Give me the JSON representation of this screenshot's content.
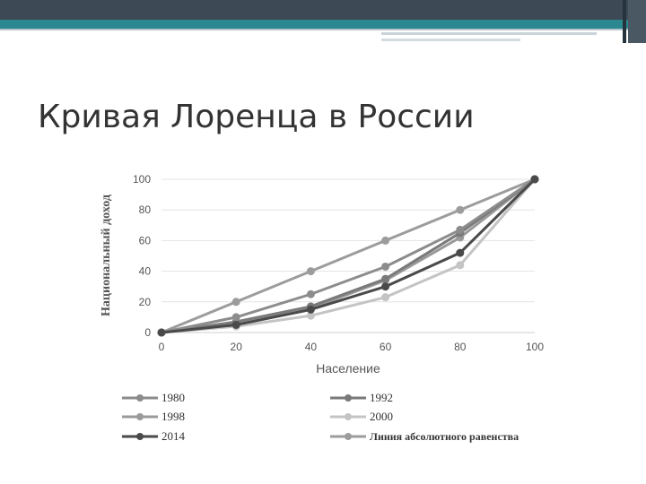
{
  "slide": {
    "title": "Кривая Лоренца в России"
  },
  "colors": {
    "header_dark": "#3d4a55",
    "header_teal": "#2b8790",
    "title_text": "#333333"
  },
  "chart_data": {
    "type": "line",
    "title": "",
    "xlabel": "Население",
    "ylabel": "Национальный доход",
    "x": [
      0,
      20,
      40,
      60,
      80,
      100
    ],
    "xlim": [
      0,
      100
    ],
    "ylim": [
      0,
      100
    ],
    "xticks": [
      "0",
      "20",
      "40",
      "60",
      "80",
      "100"
    ],
    "yticks": [
      "0",
      "20",
      "40",
      "60",
      "80",
      "100"
    ],
    "grid": "horizontal",
    "legend_position": "bottom",
    "series": [
      {
        "name": "1980",
        "color": "#8c8c8c",
        "values": [
          0,
          10,
          25,
          43,
          67,
          100
        ]
      },
      {
        "name": "1992",
        "color": "#7a7a7a",
        "values": [
          0,
          7,
          17,
          35,
          65,
          100
        ]
      },
      {
        "name": "1998",
        "color": "#9a9a9a",
        "values": [
          0,
          6,
          16,
          34,
          62,
          100
        ]
      },
      {
        "name": "2000",
        "color": "#c4c4c4",
        "values": [
          0,
          4,
          11,
          23,
          44,
          100
        ]
      },
      {
        "name": "2014",
        "color": "#4a4a4a",
        "values": [
          0,
          5,
          15,
          30,
          52,
          100
        ]
      },
      {
        "name": "Линия абсолютного равенства",
        "color": "#9c9c9c",
        "values": [
          0,
          20,
          40,
          60,
          80,
          100
        ]
      }
    ]
  }
}
